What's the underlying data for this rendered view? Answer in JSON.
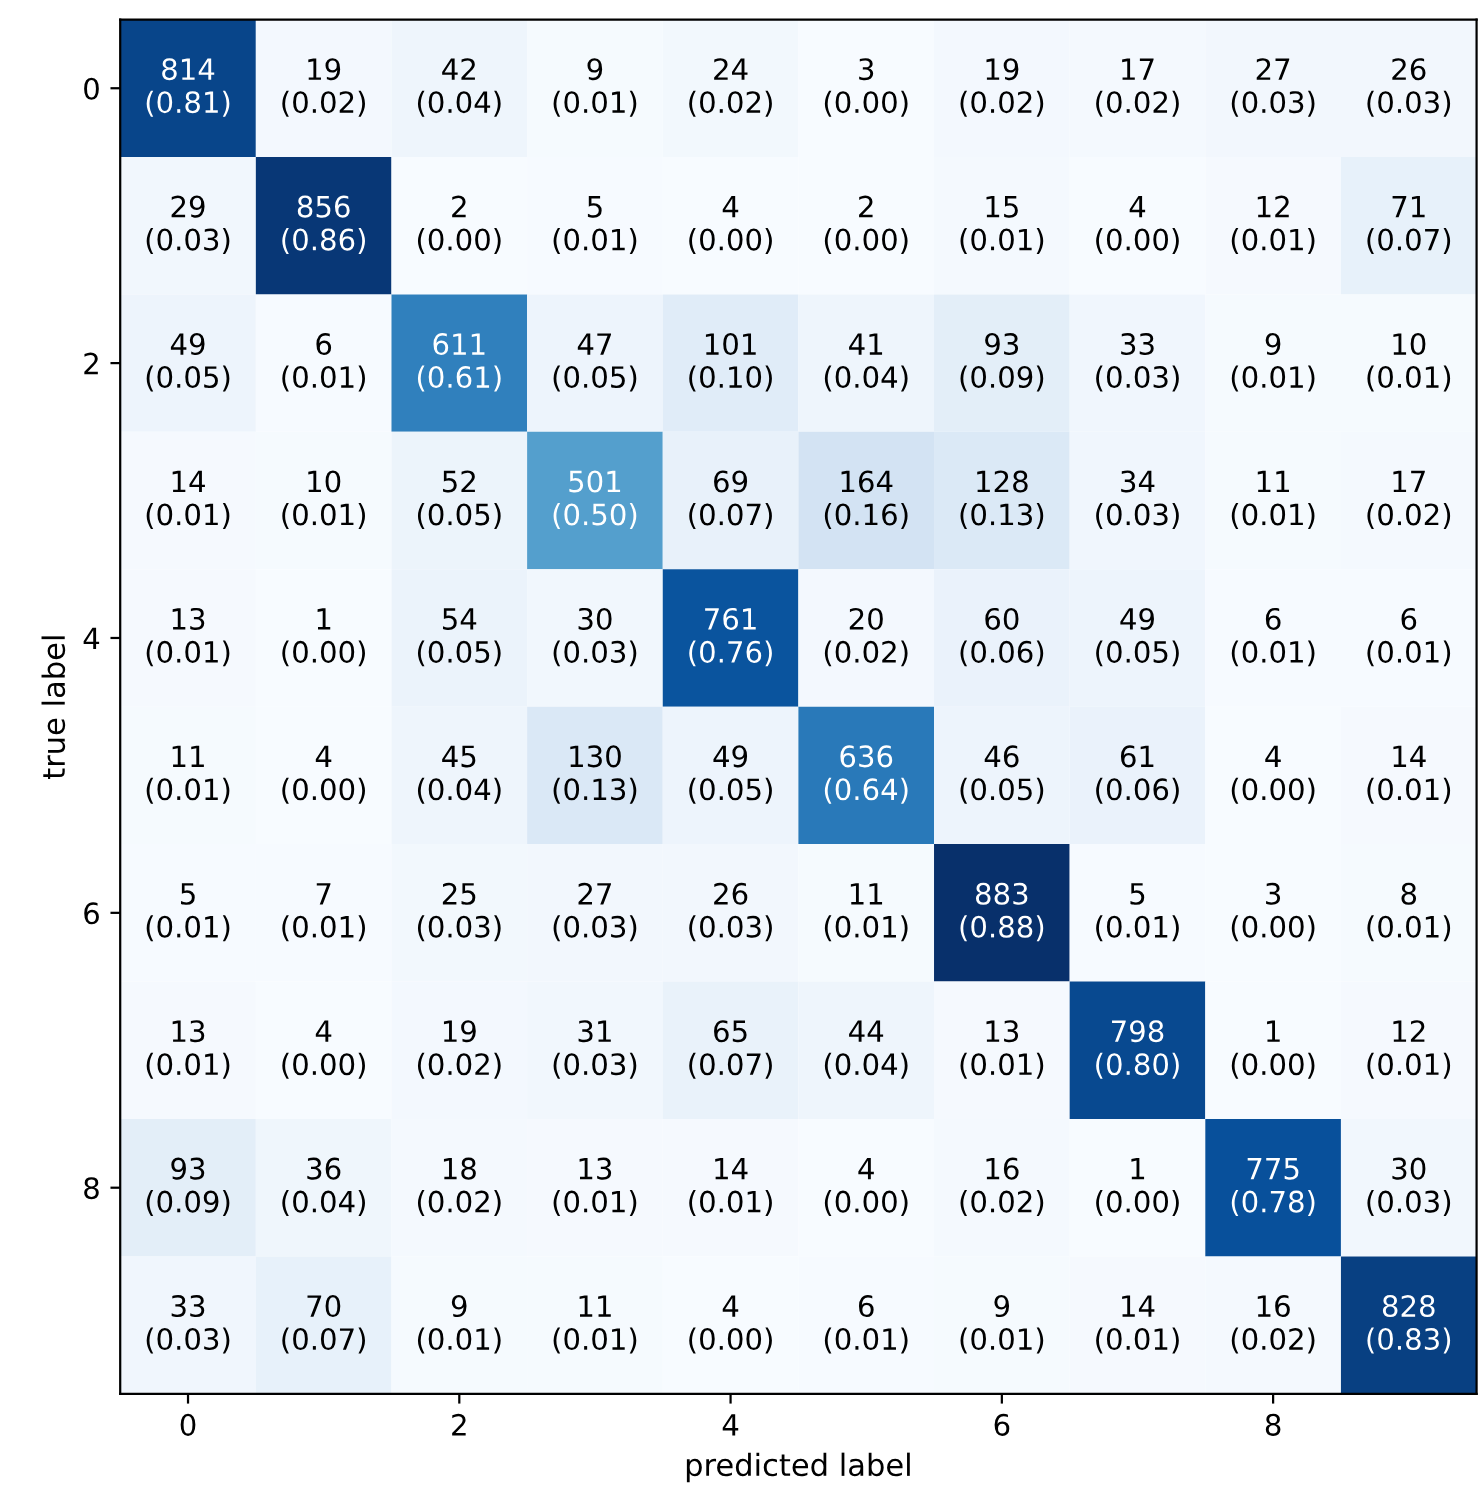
{
  "chart_data": {
    "type": "heatmap",
    "xlabel": "predicted label",
    "ylabel": "true label",
    "data_labels": true,
    "categories": [
      "0",
      null,
      "2",
      null,
      "4",
      null,
      "6",
      null,
      "8",
      null
    ],
    "y_categories": [
      "0",
      null,
      "2",
      null,
      "4",
      null,
      "6",
      null,
      "8",
      null
    ],
    "cells": [
      [
        814,
        19,
        42,
        9,
        24,
        3,
        19,
        17,
        27,
        26
      ],
      [
        29,
        856,
        2,
        5,
        4,
        2,
        15,
        4,
        12,
        71
      ],
      [
        49,
        6,
        611,
        47,
        101,
        41,
        93,
        33,
        9,
        10
      ],
      [
        14,
        10,
        52,
        501,
        69,
        164,
        128,
        34,
        11,
        17
      ],
      [
        13,
        1,
        54,
        30,
        761,
        20,
        60,
        49,
        6,
        6
      ],
      [
        11,
        4,
        45,
        130,
        49,
        636,
        46,
        61,
        4,
        14
      ],
      [
        5,
        7,
        25,
        27,
        26,
        11,
        883,
        5,
        3,
        8
      ],
      [
        13,
        4,
        19,
        31,
        65,
        44,
        13,
        798,
        1,
        12
      ],
      [
        93,
        36,
        18,
        13,
        14,
        4,
        16,
        1,
        775,
        30
      ],
      [
        33,
        70,
        9,
        11,
        4,
        6,
        9,
        14,
        16,
        828
      ]
    ],
    "annotations": [
      "(0.81)",
      "(0.02)",
      "(0.04)",
      "(0.01)",
      "(0.02)",
      "(0.00)",
      "(0.02)",
      "(0.02)",
      "(0.03)",
      "(0.03)",
      "(0.03)",
      "(0.86)",
      "(0.00)",
      "(0.01)",
      "(0.00)",
      "(0.00)",
      "(0.01)",
      "(0.00)",
      "(0.01)",
      "(0.07)",
      "(0.05)",
      "(0.01)",
      "(0.61)",
      "(0.05)",
      "(0.10)",
      "(0.04)",
      "(0.09)",
      "(0.03)",
      "(0.01)",
      "(0.01)",
      "(0.01)",
      "(0.01)",
      "(0.05)",
      "(0.50)",
      "(0.07)",
      "(0.16)",
      "(0.13)",
      "(0.03)",
      "(0.01)",
      "(0.02)",
      "(0.01)",
      "(0.00)",
      "(0.05)",
      "(0.03)",
      "(0.76)",
      "(0.02)",
      "(0.06)",
      "(0.05)",
      "(0.01)",
      "(0.01)",
      "(0.01)",
      "(0.00)",
      "(0.04)",
      "(0.13)",
      "(0.05)",
      "(0.64)",
      "(0.05)",
      "(0.06)",
      "(0.00)",
      "(0.01)",
      "(0.01)",
      "(0.01)",
      "(0.03)",
      "(0.03)",
      "(0.03)",
      "(0.01)",
      "(0.88)",
      "(0.01)",
      "(0.00)",
      "(0.01)",
      "(0.01)",
      "(0.00)",
      "(0.02)",
      "(0.03)",
      "(0.07)",
      "(0.04)",
      "(0.01)",
      "(0.80)",
      "(0.00)",
      "(0.01)",
      "(0.09)",
      "(0.04)",
      "(0.02)",
      "(0.01)",
      "(0.01)",
      "(0.00)",
      "(0.02)",
      "(0.00)",
      "(0.78)",
      "(0.03)",
      "(0.03)",
      "(0.07)",
      "(0.01)",
      "(0.01)",
      "(0.00)",
      "(0.01)",
      "(0.01)",
      "(0.01)",
      "(0.02)",
      "(0.83)"
    ]
  }
}
